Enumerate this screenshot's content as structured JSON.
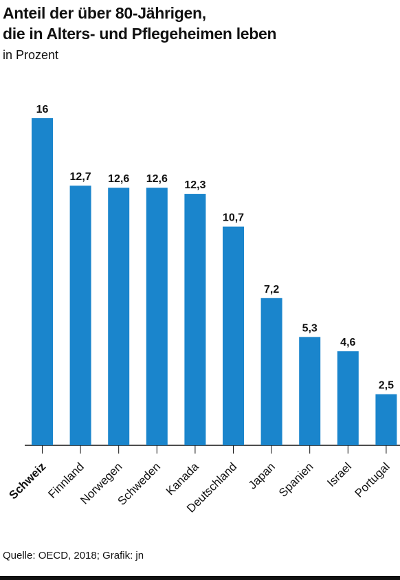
{
  "title": [
    "Anteil der über 80-Jährigen,",
    "die in Alters- und Pflegeheimen leben"
  ],
  "subtitle": "in Prozent",
  "source": "Quelle: OECD, 2018; Grafik: jn",
  "colors": {
    "bar": "#1a85cc",
    "text": "#111111",
    "axis": "#111111"
  },
  "chart_data": {
    "type": "bar",
    "title": "Anteil der über 80-Jährigen, die in Alters- und Pflegeheimen leben",
    "subtitle": "in Prozent",
    "categories": [
      "Schweiz",
      "Finnland",
      "Norwegen",
      "Schweden",
      "Kanada",
      "Deutschland",
      "Japan",
      "Spanien",
      "Israel",
      "Portugal"
    ],
    "values": [
      16,
      12.7,
      12.6,
      12.6,
      12.3,
      10.7,
      7.2,
      5.3,
      4.6,
      2.5
    ],
    "value_labels": [
      "16",
      "12,7",
      "12,6",
      "12,6",
      "12,3",
      "10,7",
      "7,2",
      "5,3",
      "4,6",
      "2,5"
    ],
    "highlight": "Schweiz",
    "ylim": [
      0,
      16
    ],
    "grid": false,
    "legend": "none"
  }
}
